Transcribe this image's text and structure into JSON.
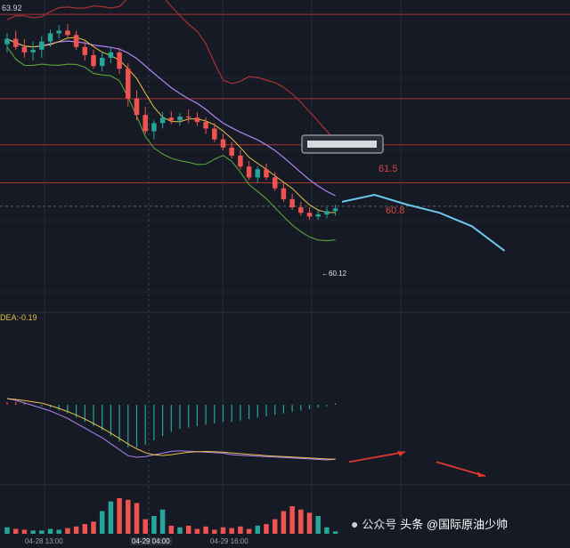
{
  "header": {
    "price_hi_label": "63.92"
  },
  "levels": {
    "level_upper": "61.5",
    "level_lower": "60.8"
  },
  "low_marker": "←60.12",
  "indicator": {
    "dea_label": "DEA:-0.19"
  },
  "time_ticks": [
    "04-28 13:00",
    "04-29 04:00",
    "04-29 16:00"
  ],
  "watermark": {
    "source": "公众号",
    "author": "头条 @国际原油少帅"
  },
  "colors": {
    "background": "#161a25",
    "up_candle": "#26a69a",
    "down_candle": "#ef5350",
    "bollinger": "#a83232",
    "ma_mid": "#b084f5",
    "ma_lower": "#5aa33a",
    "ma_fast": "#e8c24a",
    "level_line": "#a83232",
    "forecast_price": "#6ec6f0",
    "forecast_macd": "#e0392b",
    "dif": "#b084f5",
    "dea": "#e8c24a",
    "macd_hist": "#26a69a"
  },
  "chart_data": [
    {
      "type": "candlestick",
      "title": "",
      "ylim": [
        58.6,
        64.0
      ],
      "levels": [
        61.5,
        60.8
      ],
      "recent_low": 60.12,
      "candles": [
        [
          63.35,
          63.55,
          63.2,
          63.45
        ],
        [
          63.45,
          63.6,
          63.25,
          63.3
        ],
        [
          63.3,
          63.45,
          63.1,
          63.2
        ],
        [
          63.2,
          63.4,
          63.05,
          63.25
        ],
        [
          63.25,
          63.5,
          63.1,
          63.4
        ],
        [
          63.4,
          63.62,
          63.3,
          63.55
        ],
        [
          63.55,
          63.7,
          63.45,
          63.6
        ],
        [
          63.6,
          63.72,
          63.48,
          63.52
        ],
        [
          63.52,
          63.6,
          63.25,
          63.3
        ],
        [
          63.3,
          63.4,
          63.05,
          63.15
        ],
        [
          63.15,
          63.25,
          62.9,
          62.95
        ],
        [
          62.95,
          63.2,
          62.85,
          63.1
        ],
        [
          63.1,
          63.3,
          63.0,
          63.2
        ],
        [
          63.2,
          63.28,
          62.8,
          62.9
        ],
        [
          62.9,
          63.0,
          62.2,
          62.35
        ],
        [
          62.35,
          62.5,
          61.95,
          62.05
        ],
        [
          62.05,
          62.2,
          61.7,
          61.75
        ],
        [
          61.75,
          61.95,
          61.6,
          61.9
        ],
        [
          61.9,
          62.1,
          61.8,
          62.0
        ],
        [
          62.0,
          62.12,
          61.88,
          61.95
        ],
        [
          61.95,
          62.08,
          61.85,
          62.02
        ],
        [
          62.02,
          62.15,
          61.9,
          62.0
        ],
        [
          62.0,
          62.1,
          61.85,
          61.92
        ],
        [
          61.92,
          62.0,
          61.7,
          61.8
        ],
        [
          61.8,
          61.9,
          61.55,
          61.6
        ],
        [
          61.6,
          61.7,
          61.4,
          61.45
        ],
        [
          61.45,
          61.55,
          61.25,
          61.3
        ],
        [
          61.3,
          61.4,
          61.05,
          61.1
        ],
        [
          61.1,
          61.2,
          60.85,
          60.9
        ],
        [
          60.9,
          61.1,
          60.8,
          61.05
        ],
        [
          61.05,
          61.15,
          60.85,
          60.9
        ],
        [
          60.9,
          61.0,
          60.65,
          60.7
        ],
        [
          60.7,
          60.8,
          60.45,
          60.5
        ],
        [
          60.5,
          60.6,
          60.3,
          60.35
        ],
        [
          60.35,
          60.45,
          60.2,
          60.25
        ],
        [
          60.25,
          60.35,
          60.12,
          60.18
        ],
        [
          60.18,
          60.3,
          60.12,
          60.22
        ],
        [
          60.22,
          60.35,
          60.15,
          60.28
        ],
        [
          60.28,
          60.4,
          60.2,
          60.33
        ]
      ],
      "forecast": [
        60.45,
        60.58,
        60.4,
        60.25,
        60.0,
        59.55
      ]
    },
    {
      "type": "macd",
      "dea_value": -0.19,
      "histogram": [
        0.02,
        0.02,
        0.01,
        0.0,
        -0.01,
        -0.02,
        -0.04,
        -0.06,
        -0.09,
        -0.12,
        -0.15,
        -0.18,
        -0.22,
        -0.26,
        -0.3,
        -0.3,
        -0.28,
        -0.25,
        -0.22,
        -0.19,
        -0.17,
        -0.16,
        -0.15,
        -0.14,
        -0.13,
        -0.12,
        -0.12,
        -0.11,
        -0.1,
        -0.09,
        -0.08,
        -0.07,
        -0.06,
        -0.05,
        -0.04,
        -0.03,
        -0.02,
        -0.01,
        0.01
      ],
      "forecast": [
        -0.12,
        -0.05,
        -0.12,
        -0.22
      ]
    },
    {
      "type": "bar",
      "volumes": [
        8,
        6,
        5,
        4,
        4,
        6,
        5,
        7,
        9,
        12,
        15,
        28,
        40,
        44,
        42,
        38,
        18,
        22,
        30,
        10,
        8,
        10,
        6,
        9,
        5,
        8,
        7,
        9,
        6,
        10,
        12,
        18,
        28,
        34,
        30,
        26,
        22,
        8,
        3
      ]
    }
  ]
}
